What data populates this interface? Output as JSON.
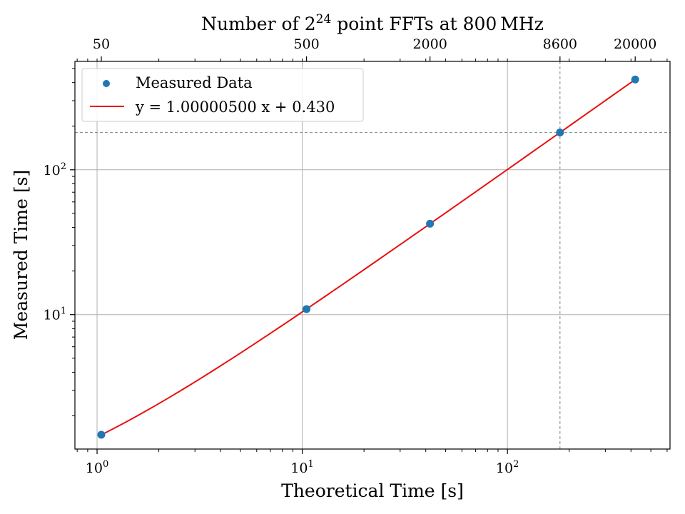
{
  "chart_data": {
    "type": "scatter",
    "title_parts": {
      "pre": "Number of 2",
      "sup": "24",
      "post": " point FFTs at 800 MHz"
    },
    "xlabel": "Theoretical Time [s]",
    "ylabel": "Measured Time [s]",
    "x_scale": "log",
    "y_scale": "log",
    "xlim": [
      0.78,
      620
    ],
    "ylim": [
      1.18,
      560
    ],
    "grid": true,
    "legend_position": "top-left",
    "x_ticks": [
      {
        "value": 1,
        "base": "10",
        "exp": "0"
      },
      {
        "value": 10,
        "base": "10",
        "exp": "1"
      },
      {
        "value": 100,
        "base": "10",
        "exp": "2"
      }
    ],
    "y_ticks": [
      {
        "value": 10,
        "base": "10",
        "exp": "1"
      },
      {
        "value": 100,
        "base": "10",
        "exp": "2"
      }
    ],
    "top_axis": {
      "ticks": [
        {
          "value": 1.049,
          "label": "50"
        },
        {
          "value": 10.49,
          "label": "500"
        },
        {
          "value": 41.94,
          "label": "2000"
        },
        {
          "value": 180.4,
          "label": "8600"
        },
        {
          "value": 419.4,
          "label": "20000"
        }
      ]
    },
    "series": [
      {
        "name": "Measured Data",
        "kind": "scatter",
        "color": "#1f77b4",
        "x": [
          1.049,
          10.49,
          41.94,
          180.4,
          419.4
        ],
        "y": [
          1.48,
          10.92,
          42.4,
          180.9,
          420.0
        ]
      },
      {
        "name": "y = 1.00000500 x + 0.430",
        "kind": "line",
        "color": "#e81010",
        "x": [
          1.049,
          419.4
        ]
      }
    ],
    "fit": {
      "slope": 1.000005,
      "intercept": 0.43
    },
    "reference_lines": {
      "x": 180.4,
      "y": 180.9
    }
  }
}
